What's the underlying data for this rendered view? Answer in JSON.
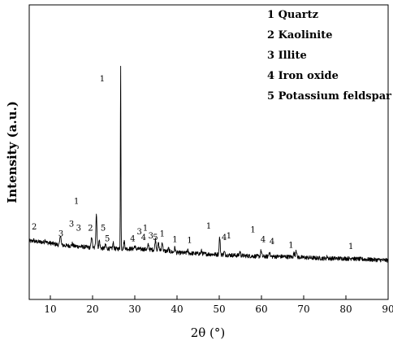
{
  "chart_data": {
    "type": "line",
    "xlabel": "2θ (°)",
    "ylabel": "Intensity (a.u.)",
    "xlim": [
      5,
      90
    ],
    "x_ticks": [
      10,
      20,
      30,
      40,
      50,
      60,
      70,
      80,
      90
    ],
    "ylim": [
      0,
      110
    ],
    "grid": false,
    "legend_position": "top-right",
    "legend": [
      {
        "number": "1",
        "name": "Quartz"
      },
      {
        "number": "2",
        "name": "Kaolinite"
      },
      {
        "number": "3",
        "name": "Illite"
      },
      {
        "number": "4",
        "name": "Iron oxide"
      },
      {
        "number": "5",
        "name": "Potassium feldspar"
      }
    ],
    "baseline": [
      [
        5,
        21
      ],
      [
        8,
        20.5
      ],
      [
        10,
        20
      ],
      [
        12,
        19
      ],
      [
        15,
        18.5
      ],
      [
        18,
        18
      ],
      [
        20,
        17.5
      ],
      [
        25,
        17
      ],
      [
        30,
        17
      ],
      [
        35,
        16.5
      ],
      [
        40,
        15
      ],
      [
        45,
        14.5
      ],
      [
        50,
        14
      ],
      [
        55,
        13.5
      ],
      [
        60,
        13
      ],
      [
        65,
        13
      ],
      [
        70,
        12.5
      ],
      [
        75,
        12
      ],
      [
        80,
        12
      ],
      [
        85,
        11.5
      ],
      [
        90,
        11
      ]
    ],
    "peaks": [
      {
        "x": 6.0,
        "height": 0.8
      },
      {
        "x": 8.8,
        "height": 1.5
      },
      {
        "x": 12.4,
        "height": 5.5
      },
      {
        "x": 15.2,
        "height": 1.2
      },
      {
        "x": 19.8,
        "height": 6
      },
      {
        "x": 20.9,
        "height": 18
      },
      {
        "x": 21.6,
        "height": 4
      },
      {
        "x": 23.1,
        "height": 2
      },
      {
        "x": 24.9,
        "height": 3
      },
      {
        "x": 26.65,
        "height": 96
      },
      {
        "x": 27.5,
        "height": 4
      },
      {
        "x": 30.0,
        "height": 1.5
      },
      {
        "x": 33.2,
        "height": 2.5
      },
      {
        "x": 34.9,
        "height": 5.5
      },
      {
        "x": 35.6,
        "height": 3.5
      },
      {
        "x": 36.5,
        "height": 4.5
      },
      {
        "x": 38.0,
        "height": 1.5
      },
      {
        "x": 39.5,
        "height": 2.5
      },
      {
        "x": 42.5,
        "height": 1.5
      },
      {
        "x": 45.8,
        "height": 1.5
      },
      {
        "x": 50.1,
        "height": 9
      },
      {
        "x": 51.2,
        "height": 1.5
      },
      {
        "x": 54.9,
        "height": 2
      },
      {
        "x": 59.9,
        "height": 3
      },
      {
        "x": 61.9,
        "height": 2.5
      },
      {
        "x": 67.7,
        "height": 2
      },
      {
        "x": 68.2,
        "height": 4
      },
      {
        "x": 75.6,
        "height": 1
      },
      {
        "x": 81.5,
        "height": 1
      }
    ],
    "peak_labels": [
      {
        "text": "2",
        "x": 6.2,
        "y": 27
      },
      {
        "text": "3",
        "x": 12.5,
        "y": 23.5
      },
      {
        "text": "3",
        "x": 15.0,
        "y": 28.5
      },
      {
        "text": "3",
        "x": 16.7,
        "y": 26.5
      },
      {
        "text": "1",
        "x": 16.2,
        "y": 40.5
      },
      {
        "text": "2",
        "x": 19.5,
        "y": 26.5
      },
      {
        "text": "5",
        "x": 22.5,
        "y": 26.5
      },
      {
        "text": "5",
        "x": 23.5,
        "y": 21
      },
      {
        "text": "1",
        "x": 22.3,
        "y": 104
      },
      {
        "text": "4",
        "x": 29.5,
        "y": 21
      },
      {
        "text": "3",
        "x": 31.1,
        "y": 24.5
      },
      {
        "text": "1",
        "x": 32.5,
        "y": 26.5
      },
      {
        "text": "4",
        "x": 32.1,
        "y": 21.5
      },
      {
        "text": "3",
        "x": 33.8,
        "y": 22.5
      },
      {
        "text": "5",
        "x": 34.9,
        "y": 21.5
      },
      {
        "text": "1",
        "x": 36.5,
        "y": 23.5
      },
      {
        "text": "1",
        "x": 39.5,
        "y": 20.5
      },
      {
        "text": "1",
        "x": 43.0,
        "y": 20
      },
      {
        "text": "1",
        "x": 47.5,
        "y": 27.5
      },
      {
        "text": "4",
        "x": 51.2,
        "y": 21.5
      },
      {
        "text": "1",
        "x": 52.3,
        "y": 22.5
      },
      {
        "text": "1",
        "x": 58.0,
        "y": 25.5
      },
      {
        "text": "4",
        "x": 60.4,
        "y": 20.5
      },
      {
        "text": "4",
        "x": 62.5,
        "y": 19.5
      },
      {
        "text": "1",
        "x": 67.0,
        "y": 17.5
      },
      {
        "text": "1",
        "x": 81.2,
        "y": 17
      }
    ]
  }
}
